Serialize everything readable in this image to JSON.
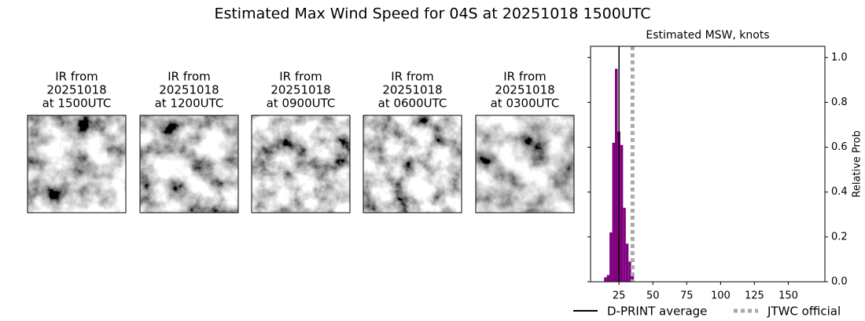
{
  "title": "Estimated Max Wind Speed for 04S at 20251018 1500UTC",
  "panels": [
    {
      "title_lines": [
        "IR from",
        "20251018",
        "at 1500UTC"
      ]
    },
    {
      "title_lines": [
        "IR from",
        "20251018",
        "at 1200UTC"
      ]
    },
    {
      "title_lines": [
        "IR from",
        "20251018",
        "at 0900UTC"
      ]
    },
    {
      "title_lines": [
        "IR from",
        "20251018",
        "at 0600UTC"
      ]
    },
    {
      "title_lines": [
        "IR from",
        "20251018",
        "at 0300UTC"
      ]
    }
  ],
  "chart_data": {
    "type": "histogram",
    "title": "Estimated MSW, knots",
    "y_label": "Relative Prob",
    "bins": [
      14,
      16,
      18,
      20,
      22,
      24,
      26,
      28,
      30,
      32,
      34,
      36
    ],
    "values": [
      0.02,
      0.03,
      0.22,
      0.62,
      0.95,
      0.67,
      0.61,
      0.33,
      0.17,
      0.09,
      0.04
    ],
    "color": "#800080",
    "xlim": [
      4,
      177
    ],
    "xticks": [
      25,
      50,
      75,
      100,
      125,
      150
    ],
    "ylim": [
      0,
      1.05
    ],
    "yticks": [
      {
        "value": 0,
        "label": "0.0"
      },
      0.2,
      0.4,
      0.6,
      0.8,
      {
        "value": 1,
        "label": "1.0"
      }
    ],
    "y_axis_side": "right",
    "reference_lines": [
      {
        "name": "D-PRINT average",
        "x": 25,
        "color": "#000000",
        "style": "solid"
      },
      {
        "name": "JTWC official",
        "x": 35,
        "color": "#aaaaaa",
        "style": "dotted"
      }
    ]
  }
}
